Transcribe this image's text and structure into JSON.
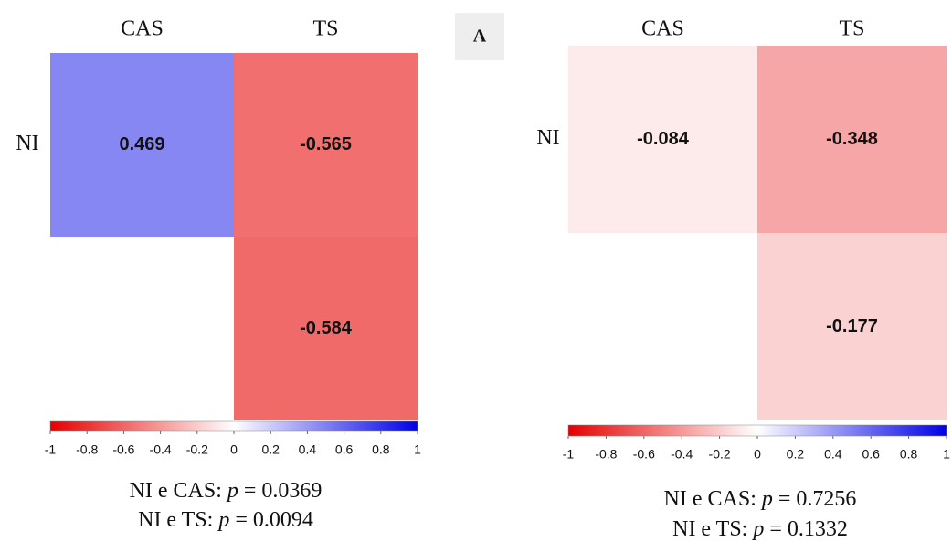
{
  "panel_label": "A",
  "chart_data": [
    {
      "type": "heatmap",
      "columns": [
        "CAS",
        "TS"
      ],
      "rows": [
        "NI",
        null
      ],
      "values": [
        [
          0.469,
          -0.565
        ],
        [
          null,
          -0.584
        ]
      ],
      "colormap": {
        "min_color": "#e60000",
        "mid_color": "#ffffff",
        "max_color": "#0000e6"
      },
      "clim": [
        -1,
        1
      ],
      "cticks": [
        -1,
        -0.8,
        -0.6,
        -0.4,
        -0.2,
        0,
        0.2,
        0.4,
        0.6,
        0.8,
        1
      ],
      "annotations": [
        "NI e CAS: p = 0.0369",
        "NI e TS: p = 0.0094"
      ]
    },
    {
      "type": "heatmap",
      "columns": [
        "CAS",
        "TS"
      ],
      "rows": [
        "NI",
        null
      ],
      "values": [
        [
          -0.084,
          -0.348
        ],
        [
          null,
          -0.177
        ]
      ],
      "colormap": {
        "min_color": "#e60000",
        "mid_color": "#ffffff",
        "max_color": "#0000e6"
      },
      "clim": [
        -1,
        1
      ],
      "cticks": [
        -1,
        -0.8,
        -0.6,
        -0.4,
        -0.2,
        0,
        0.2,
        0.4,
        0.6,
        0.8,
        1
      ],
      "annotations": [
        "NI e CAS: p = 0.7256",
        "NI e TS: p = 0.1332"
      ]
    }
  ]
}
